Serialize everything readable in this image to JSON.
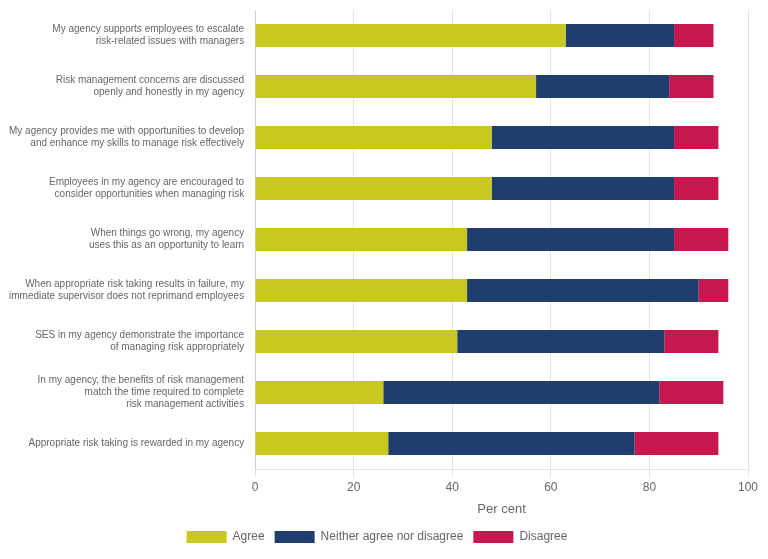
{
  "chart_data": {
    "type": "bar",
    "orientation": "horizontal",
    "stacked": true,
    "categories": [
      "My agency supports employees to escalate\nrisk-related issues with managers",
      "Risk management concerns are discussed\nopenly and honestly in my agency",
      "My agency provides me with opportunities to develop\nand enhance my skills to manage risk effectively",
      "Employees in my agency are encouraged to\nconsider opportunities when managing risk",
      "When things go wrong, my agency\nuses this as an opportunity to learn",
      "When appropriate risk taking results in failure, my\nimmediate supervisor does not reprimand employees",
      "SES in my agency demonstrate the importance\nof managing risk appropriately",
      "In my agency, the benefits of risk management\nmatch the time required to complete\nrisk management activities",
      "Appropriate risk taking is rewarded in my agency"
    ],
    "series": [
      {
        "name": "Agree",
        "color": "#c8c81e",
        "values": [
          63,
          57,
          48,
          48,
          43,
          43,
          41,
          26,
          27
        ]
      },
      {
        "name": "Neither agree nor disagree",
        "color": "#1e3f6e",
        "values": [
          22,
          27,
          37,
          37,
          42,
          47,
          42,
          56,
          50
        ]
      },
      {
        "name": "Disagree",
        "color": "#c8174e",
        "values": [
          8,
          9,
          9,
          9,
          11,
          6,
          11,
          13,
          17
        ]
      }
    ],
    "xlabel": "Per cent",
    "xlim": [
      0,
      100
    ],
    "xticks": [
      0,
      20,
      40,
      60,
      80,
      100
    ],
    "grid": true,
    "legend": "bottom"
  }
}
